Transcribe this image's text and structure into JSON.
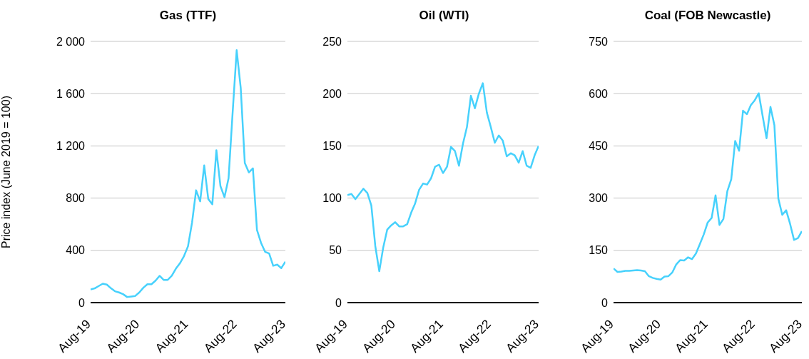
{
  "chart_data": [
    {
      "type": "line",
      "title": "Gas (TTF)",
      "ylabel": "Price index (June 2019 = 100)",
      "categories": [
        "Aug-19",
        null,
        null,
        null,
        null,
        null,
        null,
        null,
        null,
        null,
        null,
        null,
        "Aug-20",
        null,
        null,
        null,
        null,
        null,
        null,
        null,
        null,
        null,
        null,
        null,
        "Aug-21",
        null,
        null,
        null,
        null,
        null,
        null,
        null,
        null,
        null,
        null,
        null,
        "Aug-22",
        null,
        null,
        null,
        null,
        null,
        null,
        null,
        null,
        null,
        null,
        null,
        "Aug-23"
      ],
      "series": [
        {
          "color": "#47d1fc",
          "values": [
            101,
            109,
            127,
            145,
            138,
            110,
            87,
            78,
            65,
            43,
            47,
            51,
            78,
            114,
            141,
            141,
            168,
            205,
            174,
            174,
            205,
            259,
            300,
            355,
            431,
            612,
            860,
            775,
            1050,
            793,
            753,
            1167,
            892,
            807,
            952,
            1453,
            1933,
            1643,
            1070,
            997,
            1028,
            557,
            458,
            389,
            376,
            282,
            291,
            264,
            313
          ]
        }
      ],
      "ylim": [
        0,
        2000
      ],
      "yticks": [
        0,
        400,
        800,
        {
          "value": 1200,
          "label": "1 200"
        },
        {
          "value": 1600,
          "label": "1 600"
        },
        {
          "value": 2000,
          "label": "2 000"
        }
      ],
      "grid": "y"
    },
    {
      "type": "line",
      "title": "Oil (WTI)",
      "categories": [
        "Aug-19",
        null,
        null,
        null,
        null,
        null,
        null,
        null,
        null,
        null,
        null,
        null,
        "Aug-20",
        null,
        null,
        null,
        null,
        null,
        null,
        null,
        null,
        null,
        null,
        null,
        "Aug-21",
        null,
        null,
        null,
        null,
        null,
        null,
        null,
        null,
        null,
        null,
        null,
        "Aug-22",
        null,
        null,
        null,
        null,
        null,
        null,
        null,
        null,
        null,
        null,
        null,
        "Aug-23"
      ],
      "series": [
        {
          "color": "#47d1fc",
          "values": [
            103,
            104,
            99,
            104,
            109,
            105,
            93,
            54,
            30,
            53,
            70,
            74,
            77,
            73,
            73,
            75,
            86,
            95,
            108,
            114,
            113,
            119,
            130,
            132,
            124,
            130,
            149,
            145,
            131,
            152,
            168,
            198,
            186,
            200,
            210,
            182,
            168,
            153,
            160,
            155,
            140,
            143,
            141,
            134,
            145,
            131,
            129,
            141,
            150
          ]
        }
      ],
      "ylim": [
        0,
        250
      ],
      "yticks": [
        0,
        50,
        100,
        150,
        200,
        250
      ],
      "grid": "y"
    },
    {
      "type": "line",
      "title": "Coal (FOB Newcastle)",
      "categories": [
        "Aug-19",
        null,
        null,
        null,
        null,
        null,
        null,
        null,
        null,
        null,
        null,
        null,
        "Aug-20",
        null,
        null,
        null,
        null,
        null,
        null,
        null,
        null,
        null,
        null,
        null,
        "Aug-21",
        null,
        null,
        null,
        null,
        null,
        null,
        null,
        null,
        null,
        null,
        null,
        "Aug-22",
        null,
        null,
        null,
        null,
        null,
        null,
        null,
        null,
        null,
        null,
        null,
        "Aug-23"
      ],
      "series": [
        {
          "color": "#47d1fc",
          "values": [
            98,
            88,
            89,
            91,
            91,
            92,
            93,
            92,
            90,
            76,
            71,
            68,
            66,
            75,
            76,
            87,
            110,
            122,
            121,
            130,
            125,
            141,
            168,
            196,
            230,
            243,
            308,
            223,
            240,
            320,
            354,
            464,
            436,
            551,
            541,
            567,
            581,
            601,
            536,
            472,
            562,
            509,
            299,
            252,
            265,
            226,
            180,
            185,
            205
          ]
        }
      ],
      "ylim": [
        0,
        750
      ],
      "yticks": [
        0,
        150,
        300,
        450,
        600,
        750
      ],
      "grid": "y"
    }
  ]
}
